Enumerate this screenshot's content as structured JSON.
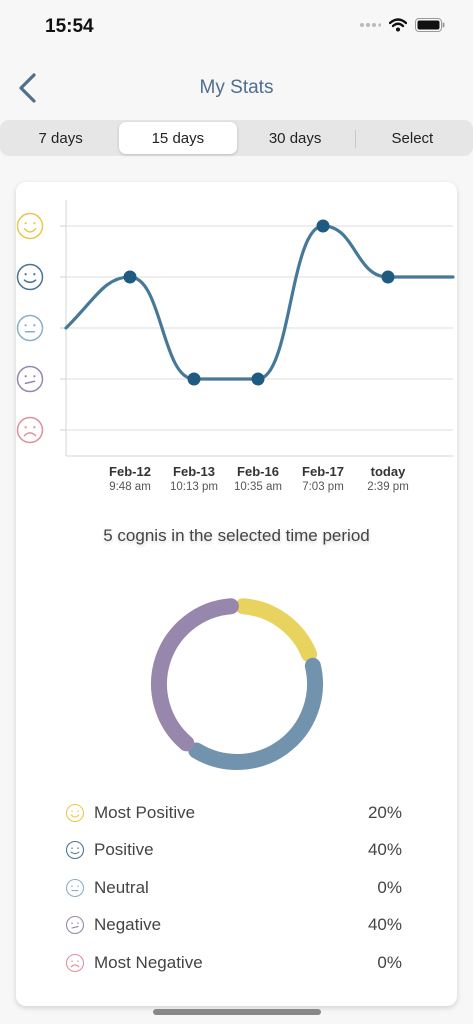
{
  "status": {
    "time": "15:54"
  },
  "nav": {
    "title": "My Stats"
  },
  "tabs": [
    "7 days",
    "15 days",
    "30 days",
    "Select"
  ],
  "active_tab": "15 days",
  "chart_data": {
    "type": "line",
    "x": [
      {
        "date": "Feb-12",
        "time": "9:48 am"
      },
      {
        "date": "Feb-13",
        "time": "10:13 pm"
      },
      {
        "date": "Feb-16",
        "time": "10:35 am"
      },
      {
        "date": "Feb-17",
        "time": "7:03 pm"
      },
      {
        "date": "today",
        "time": "2:39 pm"
      }
    ],
    "levels": [
      "Most Positive",
      "Positive",
      "Neutral",
      "Negative",
      "Most Negative"
    ],
    "values": [
      4,
      2,
      2,
      5,
      4
    ],
    "ylim": [
      1,
      5
    ],
    "grid": true,
    "line_color": "#46789a",
    "level_colors": [
      "#e8c94d",
      "#4a7494",
      "#8ab0c8",
      "#9787ad",
      "#df8fa1"
    ]
  },
  "summary": "5 cognis in the selected time period",
  "breakdown": [
    {
      "label": "Most Positive",
      "percent": "20%",
      "value": 20,
      "color": "#e8d35e",
      "icon": "very-happy-face-icon"
    },
    {
      "label": "Positive",
      "percent": "40%",
      "value": 40,
      "color": "#7293ad",
      "icon": "happy-face-icon"
    },
    {
      "label": "Neutral",
      "percent": "0%",
      "value": 0,
      "color": "#8ab0c8",
      "icon": "neutral-face-icon"
    },
    {
      "label": "Negative",
      "percent": "40%",
      "value": 40,
      "color": "#9787ad",
      "icon": "sad-face-icon"
    },
    {
      "label": "Most Negative",
      "percent": "0%",
      "value": 0,
      "color": "#df8fa1",
      "icon": "very-sad-face-icon"
    }
  ]
}
